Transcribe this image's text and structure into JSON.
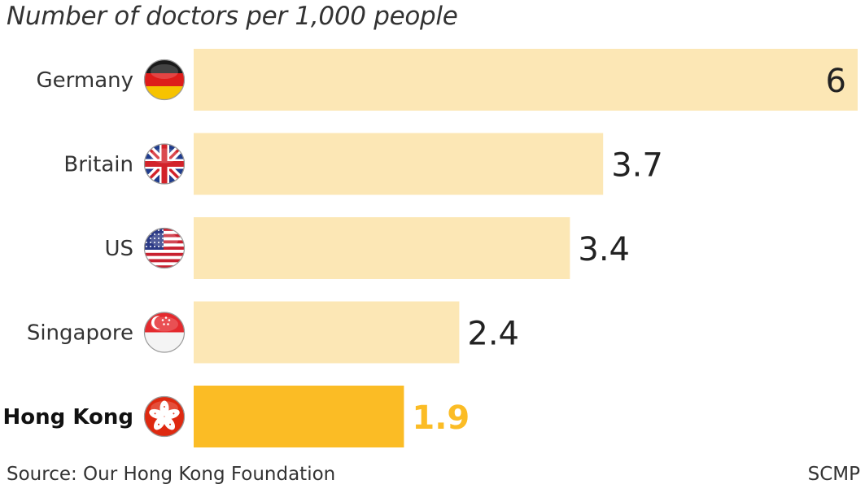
{
  "chart_data": {
    "type": "bar",
    "orientation": "horizontal",
    "title": "Number of doctors per 1,000 people",
    "categories": [
      "Germany",
      "Britain",
      "US",
      "Singapore",
      "Hong Kong"
    ],
    "values": [
      6,
      3.7,
      3.4,
      2.4,
      1.9
    ],
    "value_labels": [
      "6",
      "3.7",
      "3.4",
      "2.4",
      "1.9"
    ],
    "flags": [
      "germany-flag-icon",
      "uk-flag-icon",
      "us-flag-icon",
      "singapore-flag-icon",
      "hong-kong-flag-icon"
    ],
    "highlight": "Hong Kong",
    "xlim": [
      0,
      6
    ],
    "grid": false,
    "legend": "none",
    "colors": {
      "bar": "#fce7b5",
      "highlight_bar": "#fbbc25",
      "highlight_value": "#fbbc25"
    }
  },
  "footer": {
    "source": "Source: Our Hong Kong Foundation",
    "credit": "SCMP"
  }
}
